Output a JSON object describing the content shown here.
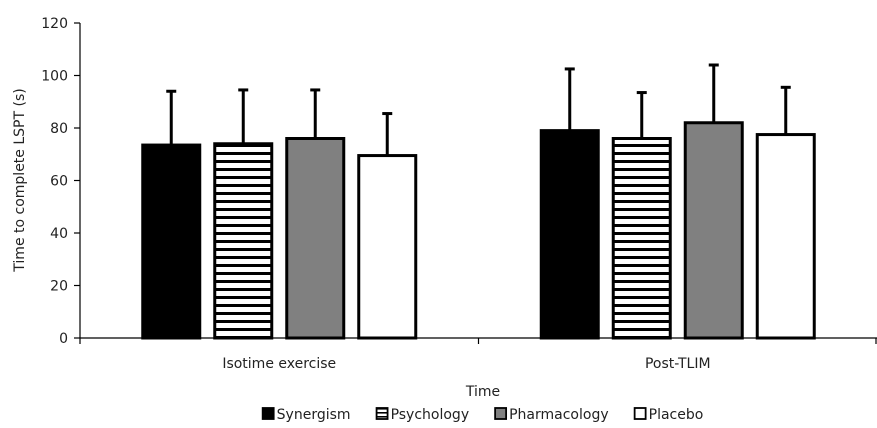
{
  "chart_data": {
    "type": "bar",
    "title": "",
    "xlabel": "Time",
    "ylabel": "Time to complete LSPT (s)",
    "ylim": [
      0,
      120
    ],
    "yticks": [
      0,
      20,
      40,
      60,
      80,
      100,
      120
    ],
    "grid": false,
    "legend_position": "bottom",
    "categories": [
      "Isotime exercise",
      "Post-TLIM"
    ],
    "series": [
      {
        "name": "Synergism",
        "values": [
          73.5,
          79
        ],
        "errors": [
          20.5,
          23.5
        ],
        "fill": "solid-black"
      },
      {
        "name": "Psychology",
        "values": [
          74,
          76
        ],
        "errors": [
          20.5,
          17.5
        ],
        "fill": "horizontal-stripes"
      },
      {
        "name": "Pharmacology",
        "values": [
          76,
          82
        ],
        "errors": [
          18.5,
          22
        ],
        "fill": "solid-grey"
      },
      {
        "name": "Placebo",
        "values": [
          69.5,
          77.5
        ],
        "errors": [
          16,
          18
        ],
        "fill": "white"
      }
    ],
    "colors": {
      "black": "#000000",
      "grey": "#808080",
      "white": "#ffffff"
    }
  }
}
